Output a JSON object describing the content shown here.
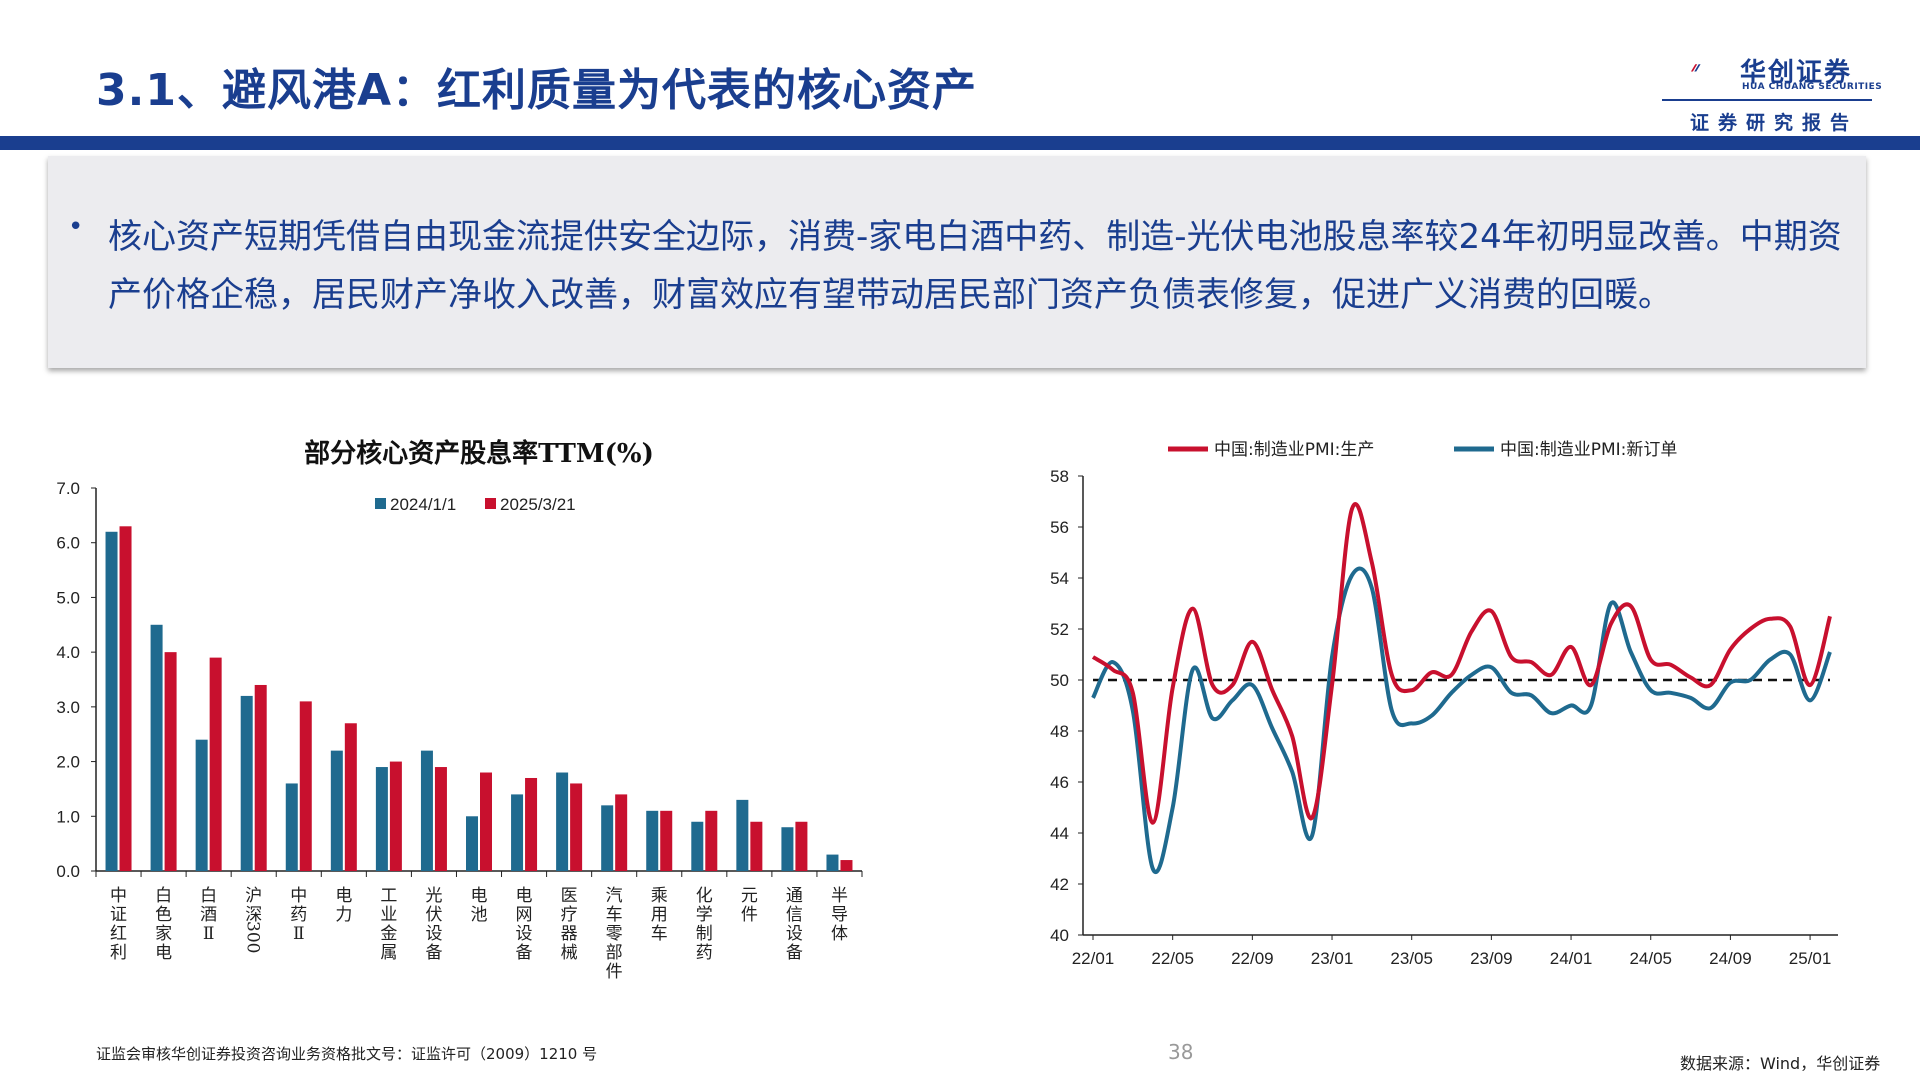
{
  "header": {
    "title": "3.1、避风港A：红利质量为代表的核心资产",
    "logo_name": "华创证券",
    "logo_sub": "HUA CHUANG SECURITIES",
    "report_label": "证券研究报告"
  },
  "summary": {
    "bullet": "•",
    "text": "核心资产短期凭借自由现金流提供安全边际，消费-家电白酒中药、制造-光伏电池股息率较24年初明显改善。中期资产价格企稳，居民财产净收入改善，财富效应有望带动居民部门资产负债表修复，促进广义消费的回暖。"
  },
  "colors": {
    "brand": "#1a3e8f",
    "series_blue": "#1f6a8f",
    "series_red": "#c8102e"
  },
  "chart_data": [
    {
      "type": "bar",
      "title": "部分核心资产股息率TTM(%)",
      "categories": [
        "中证红利",
        "白色家电",
        "白酒Ⅱ",
        "沪深300",
        "中药Ⅱ",
        "电力",
        "工业金属",
        "光伏设备",
        "电池",
        "电网设备",
        "医疗器械",
        "汽车零部件",
        "乘用车",
        "化学制药",
        "元件",
        "通信设备",
        "半导体"
      ],
      "series": [
        {
          "name": "2024/1/1",
          "values": [
            6.2,
            4.5,
            2.4,
            3.2,
            1.6,
            2.2,
            1.9,
            2.2,
            1.0,
            1.4,
            1.8,
            1.2,
            1.1,
            0.9,
            1.3,
            0.8,
            0.3
          ]
        },
        {
          "name": "2025/3/21",
          "values": [
            6.3,
            4.0,
            3.9,
            3.4,
            3.1,
            2.7,
            2.0,
            1.9,
            1.8,
            1.7,
            1.6,
            1.4,
            1.1,
            1.1,
            0.9,
            0.9,
            0.2
          ]
        }
      ],
      "ylim": [
        0,
        7
      ],
      "yticks": [
        "0.0",
        "1.0",
        "2.0",
        "3.0",
        "4.0",
        "5.0",
        "6.0",
        "7.0"
      ],
      "legend": "top-center",
      "grid": false
    },
    {
      "type": "line",
      "title": "",
      "x": [
        "22/01",
        "22/02",
        "22/03",
        "22/04",
        "22/05",
        "22/06",
        "22/07",
        "22/08",
        "22/09",
        "22/10",
        "22/11",
        "22/12",
        "23/01",
        "23/02",
        "23/03",
        "23/04",
        "23/05",
        "23/06",
        "23/07",
        "23/08",
        "23/09",
        "23/10",
        "23/11",
        "23/12",
        "24/01",
        "24/02",
        "24/03",
        "24/04",
        "24/05",
        "24/06",
        "24/07",
        "24/08",
        "24/09",
        "24/10",
        "24/11",
        "24/12",
        "25/01",
        "25/02"
      ],
      "xticks": [
        "22/01",
        "22/05",
        "22/09",
        "23/01",
        "23/05",
        "23/09",
        "24/01",
        "24/05",
        "24/09",
        "25/01"
      ],
      "series": [
        {
          "name": "中国:制造业PMI:生产",
          "values": [
            50.9,
            50.4,
            49.5,
            44.4,
            49.7,
            52.8,
            49.8,
            49.8,
            51.5,
            49.6,
            47.8,
            44.6,
            49.8,
            56.7,
            54.6,
            50.2,
            49.6,
            50.3,
            50.2,
            51.9,
            52.7,
            50.9,
            50.7,
            50.2,
            51.3,
            49.8,
            52.2,
            52.9,
            50.8,
            50.6,
            50.1,
            49.8,
            51.2,
            52.0,
            52.4,
            52.1,
            49.8,
            52.5
          ]
        },
        {
          "name": "中国:制造业PMI:新订单",
          "values": [
            49.3,
            50.7,
            48.8,
            42.6,
            45.0,
            50.4,
            48.5,
            49.2,
            49.8,
            48.1,
            46.4,
            43.9,
            50.9,
            54.1,
            53.6,
            48.8,
            48.3,
            48.6,
            49.5,
            50.2,
            50.5,
            49.5,
            49.4,
            48.7,
            49.0,
            49.0,
            53.0,
            51.1,
            49.6,
            49.5,
            49.3,
            48.9,
            49.9,
            50.0,
            50.8,
            51.0,
            49.2,
            51.1
          ]
        }
      ],
      "reference_line": 50,
      "ylim": [
        40,
        58
      ],
      "yticks": [
        "40",
        "42",
        "44",
        "46",
        "48",
        "50",
        "52",
        "54",
        "56",
        "58"
      ],
      "legend": "top-center",
      "grid": false
    }
  ],
  "footer": {
    "license": "证监会审核华创证券投资咨询业务资格批文号：证监许可（2009）1210 号",
    "page": "38",
    "source": "数据来源：Wind，华创证券"
  }
}
